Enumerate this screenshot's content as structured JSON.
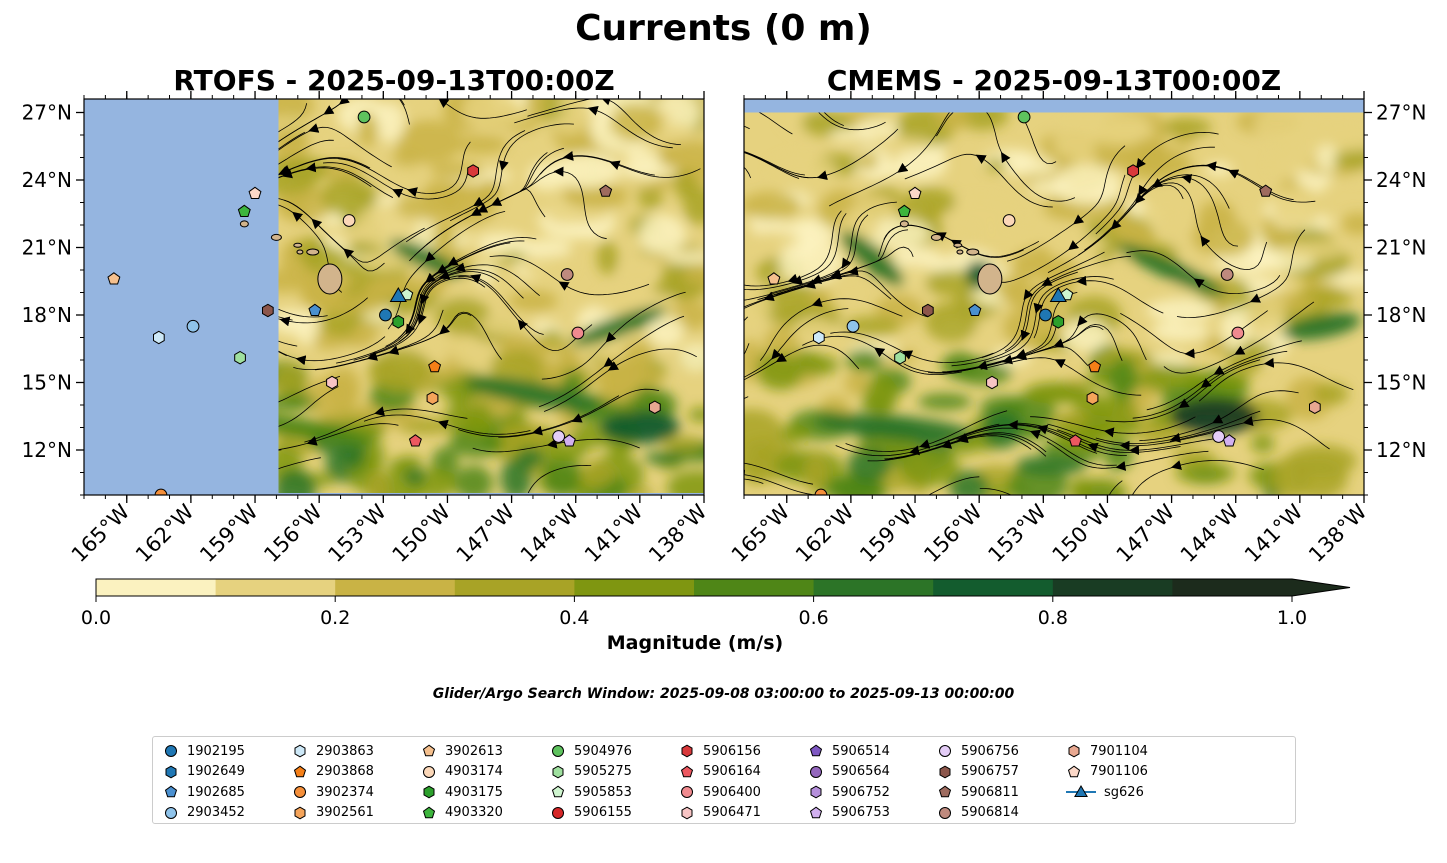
{
  "title": "Currents (0 m)",
  "search_window": "Glider/Argo Search Window: 2025-09-08 03:00:00 to 2025-09-13 00:00:00",
  "colors": {
    "land_blue": "#95b5e0",
    "island": "#d2b48c",
    "colormap": [
      "#fbf2c0",
      "#e6d27f",
      "#c9b345",
      "#a8a326",
      "#7f9611",
      "#4f8617",
      "#2c7427",
      "#135c2e",
      "#193c23",
      "#1c2b1c"
    ]
  },
  "chart_data": [
    {
      "type": "heatmap",
      "title": "RTOFS - 2025-09-13T00:00Z",
      "x_ticks": [
        "165°W",
        "162°W",
        "159°W",
        "156°W",
        "153°W",
        "150°W",
        "147°W",
        "144°W",
        "141°W",
        "138°W"
      ],
      "x_tick_values": [
        -165,
        -162,
        -159,
        -156,
        -153,
        -150,
        -147,
        -144,
        -141,
        -138
      ],
      "y_ticks": [
        "12°N",
        "15°N",
        "18°N",
        "21°N",
        "24°N",
        "27°N"
      ],
      "y_tick_values": [
        12,
        15,
        18,
        21,
        24,
        27
      ],
      "xlim": [
        -167,
        -138
      ],
      "ylim": [
        10,
        27.6
      ],
      "data_start_lon": -157.9,
      "y_axis_side": "left"
    },
    {
      "type": "heatmap",
      "title": "CMEMS - 2025-09-13T00:00Z",
      "x_ticks": [
        "165°W",
        "162°W",
        "159°W",
        "156°W",
        "153°W",
        "150°W",
        "147°W",
        "144°W",
        "141°W",
        "138°W"
      ],
      "x_tick_values": [
        -165,
        -162,
        -159,
        -156,
        -153,
        -150,
        -147,
        -144,
        -141,
        -138
      ],
      "y_ticks": [
        "12°N",
        "15°N",
        "18°N",
        "21°N",
        "24°N",
        "27°N"
      ],
      "y_tick_values": [
        12,
        15,
        18,
        21,
        24,
        27
      ],
      "xlim": [
        -167,
        -138
      ],
      "ylim": [
        10,
        27.6
      ],
      "data_top_lat": 27,
      "y_axis_side": "right"
    }
  ],
  "colorbar": {
    "label": "Magnitude (m/s)",
    "min": 0,
    "max": 1,
    "extend": "max",
    "tick_values": [
      0,
      0.2,
      0.4,
      0.6,
      0.8,
      1.0
    ],
    "tick_labels": [
      "0.0",
      "0.2",
      "0.4",
      "0.6",
      "0.8",
      "1.0"
    ]
  },
  "platforms": [
    {
      "name": "1902195",
      "marker": "circle",
      "color": "#1f77b4",
      "lon": -152.9,
      "lat": 18.0
    },
    {
      "name": "1902649",
      "marker": "hexagon",
      "color": "#1f77b4"
    },
    {
      "name": "1902685",
      "marker": "pentagon",
      "color": "#4a90d0",
      "lon": -156.2,
      "lat": 18.2
    },
    {
      "name": "2903452",
      "marker": "circle",
      "color": "#8fc3ea",
      "lon": -161.9,
      "lat": 17.5
    },
    {
      "name": "2903863",
      "marker": "hexagon",
      "color": "#cde8f7",
      "lon": -163.5,
      "lat": 17.0
    },
    {
      "name": "2903868",
      "marker": "pentagon",
      "color": "#f57f17",
      "lon": -150.6,
      "lat": 15.7
    },
    {
      "name": "3902374",
      "marker": "circle",
      "color": "#f58f3a",
      "lon": -163.4,
      "lat": 10.0
    },
    {
      "name": "3902561",
      "marker": "hexagon",
      "color": "#f5a45a",
      "lon": -150.7,
      "lat": 14.3
    },
    {
      "name": "3902613",
      "marker": "pentagon",
      "color": "#f5c08e",
      "lon": -165.6,
      "lat": 19.6
    },
    {
      "name": "4903174",
      "marker": "circle",
      "color": "#fbd7b8",
      "lon": -154.6,
      "lat": 22.2
    },
    {
      "name": "4903175",
      "marker": "hexagon",
      "color": "#2ca02c",
      "lon": -152.3,
      "lat": 17.7
    },
    {
      "name": "4903320",
      "marker": "pentagon",
      "color": "#3db53d",
      "lon": -159.5,
      "lat": 22.6
    },
    {
      "name": "5904976",
      "marker": "circle",
      "color": "#5ec25e",
      "lon": -153.9,
      "lat": 26.8
    },
    {
      "name": "5905275",
      "marker": "hexagon",
      "color": "#9fe09f",
      "lon": -159.7,
      "lat": 16.1
    },
    {
      "name": "5905853",
      "marker": "pentagon",
      "color": "#cff5cf",
      "lon": -151.9,
      "lat": 18.9
    },
    {
      "name": "5906155",
      "marker": "circle",
      "color": "#d62728"
    },
    {
      "name": "5906156",
      "marker": "hexagon",
      "color": "#d9393b",
      "lon": -148.8,
      "lat": 24.4
    },
    {
      "name": "5906164",
      "marker": "pentagon",
      "color": "#ec5860",
      "lon": -151.5,
      "lat": 12.4
    },
    {
      "name": "5906400",
      "marker": "circle",
      "color": "#f08a8f",
      "lon": -143.9,
      "lat": 17.2
    },
    {
      "name": "5906471",
      "marker": "hexagon",
      "color": "#f7c4c4",
      "lon": -155.4,
      "lat": 15.0
    },
    {
      "name": "5906514",
      "marker": "pentagon",
      "color": "#7e57c2"
    },
    {
      "name": "5906564",
      "marker": "circle",
      "color": "#9467bd"
    },
    {
      "name": "5906752",
      "marker": "hexagon",
      "color": "#b58fdb"
    },
    {
      "name": "5906753",
      "marker": "pentagon",
      "color": "#d2b0f0",
      "lon": -144.3,
      "lat": 12.4
    },
    {
      "name": "5906756",
      "marker": "circle",
      "color": "#e4cdf7",
      "lon": -144.8,
      "lat": 12.6
    },
    {
      "name": "5906757",
      "marker": "hexagon",
      "color": "#8c564b",
      "lon": -158.4,
      "lat": 18.2
    },
    {
      "name": "5906811",
      "marker": "pentagon",
      "color": "#9e6b5f",
      "lon": -142.6,
      "lat": 23.5
    },
    {
      "name": "5906814",
      "marker": "circle",
      "color": "#bf8a7e",
      "lon": -144.4,
      "lat": 19.8
    },
    {
      "name": "7901104",
      "marker": "hexagon",
      "color": "#e8a891",
      "lon": -140.3,
      "lat": 13.9
    },
    {
      "name": "7901106",
      "marker": "pentagon",
      "color": "#fcd8c8",
      "lon": -159.0,
      "lat": 23.4
    },
    {
      "name": "sg626",
      "marker": "triangle",
      "color": "#1f77b4",
      "lon": -152.3,
      "lat": 18.8
    }
  ]
}
